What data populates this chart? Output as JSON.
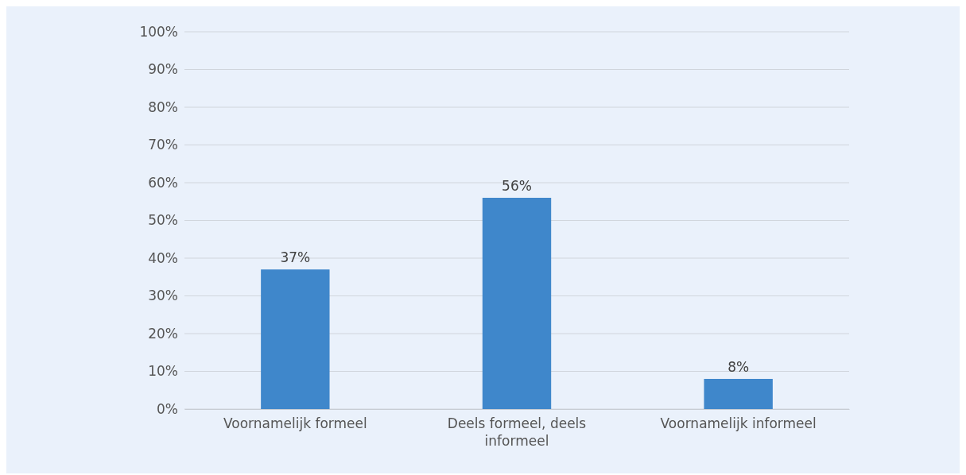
{
  "chart_data": {
    "type": "bar",
    "categories": [
      "Voornamelijk formeel",
      "Deels formeel, deels informeel",
      "Voornamelijk informeel"
    ],
    "values": [
      37,
      56,
      8
    ],
    "color": "#3f87cb",
    "data_labels": true,
    "value_labels": [
      "37%",
      "56%",
      "8%"
    ],
    "ylim": [
      0,
      100
    ],
    "yticks": [
      {
        "value": 0,
        "label": "0%"
      },
      {
        "value": 10,
        "label": "10%"
      },
      {
        "value": 20,
        "label": "20%"
      },
      {
        "value": 30,
        "label": "30%"
      },
      {
        "value": 40,
        "label": "40%"
      },
      {
        "value": 50,
        "label": "50%"
      },
      {
        "value": 60,
        "label": "60%"
      },
      {
        "value": 70,
        "label": "70%"
      },
      {
        "value": 80,
        "label": "80%"
      },
      {
        "value": 90,
        "label": "90%"
      },
      {
        "value": 100,
        "label": "100%"
      }
    ],
    "grid": "y"
  }
}
